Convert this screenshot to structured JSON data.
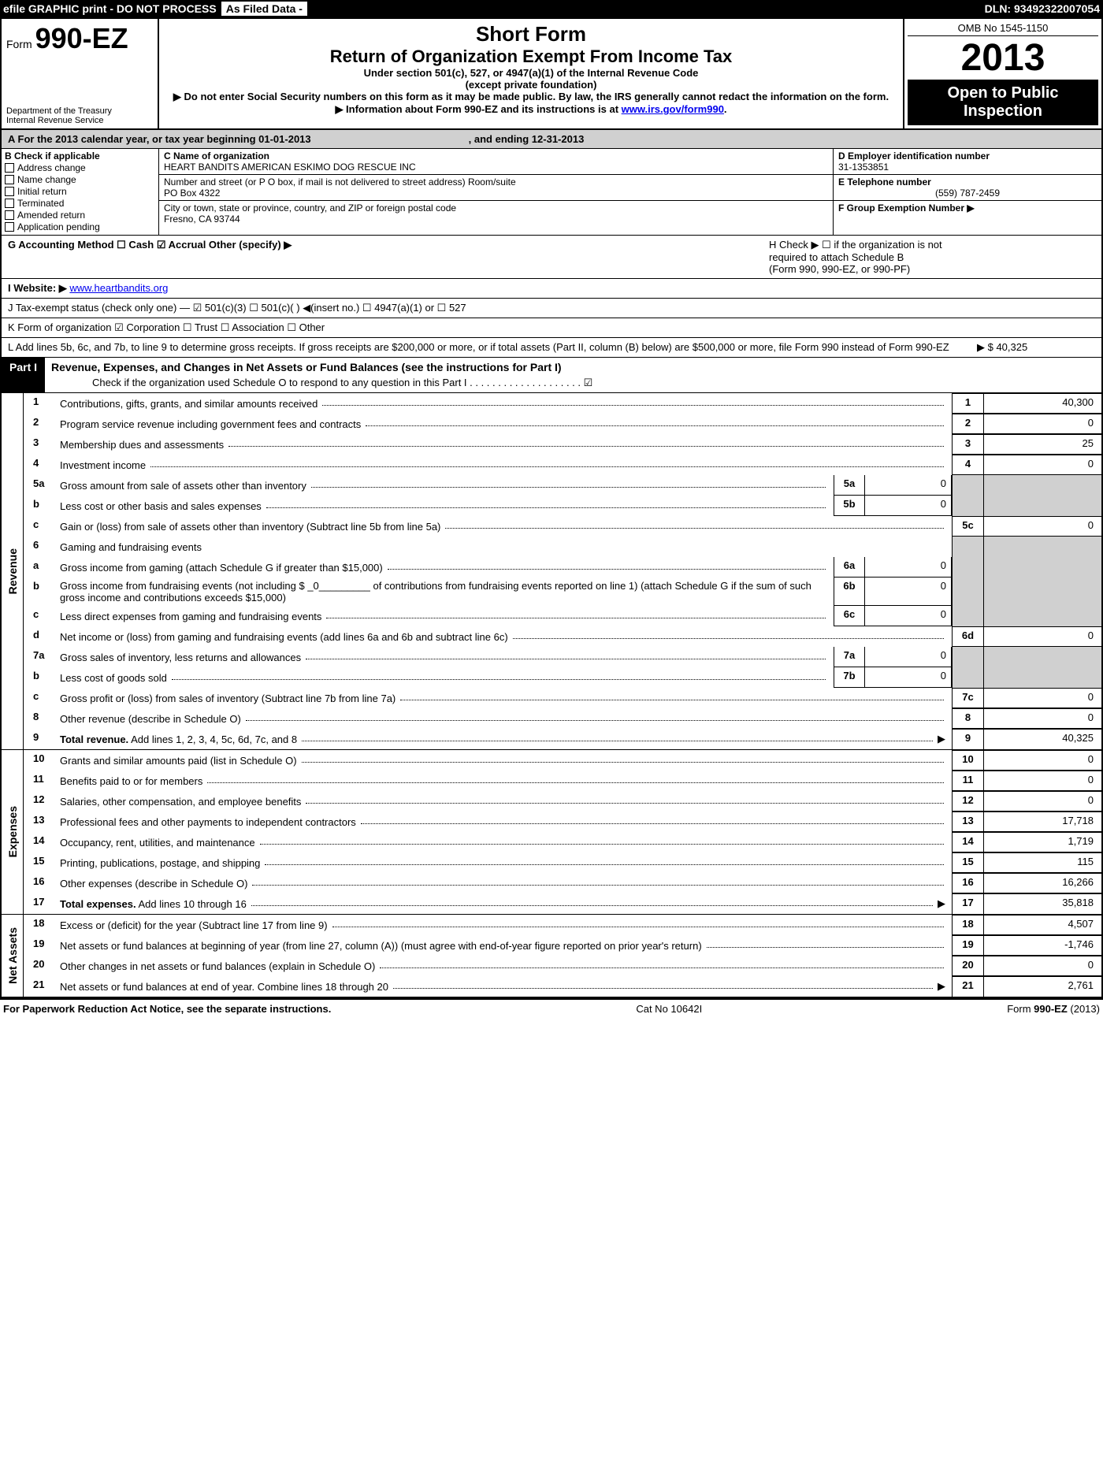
{
  "topbar": {
    "left": "efile GRAPHIC print - DO NOT PROCESS",
    "mid": "As Filed Data -",
    "right": "DLN: 93492322007054"
  },
  "header": {
    "form_prefix": "Form",
    "form_num": "990-EZ",
    "dept1": "Department of the Treasury",
    "dept2": "Internal Revenue Service",
    "short": "Short Form",
    "ret": "Return of Organization Exempt From Income Tax",
    "sub1": "Under section 501(c), 527, or 4947(a)(1) of the Internal Revenue Code",
    "sub2": "(except private foundation)",
    "note1": "▶ Do not enter Social Security numbers on this form as it may be made public. By law, the IRS generally cannot redact the information on the form.",
    "note2_a": "▶ Information about Form 990-EZ and its instructions is at ",
    "note2_link": "www.irs.gov/form990",
    "omb": "OMB No  1545-1150",
    "year": "2013",
    "open1": "Open to Public",
    "open2": "Inspection"
  },
  "rowA": {
    "a_text": "A  For the 2013 calendar year, or tax year beginning 01-01-2013",
    "a_end": ", and ending 12-31-2013"
  },
  "colB": {
    "title": "B  Check if applicable",
    "items": [
      "Address change",
      "Name change",
      "Initial return",
      "Terminated",
      "Amended return",
      "Application pending"
    ]
  },
  "colC": {
    "name_lbl": "C Name of organization",
    "name": "HEART BANDITS AMERICAN ESKIMO DOG RESCUE INC",
    "street_lbl": "Number and street (or P O box, if mail is not delivered to street address) Room/suite",
    "street": "PO Box 4322",
    "city_lbl": "City or town, state or province, country, and ZIP or foreign postal code",
    "city": "Fresno, CA  93744"
  },
  "colD": {
    "ein_lbl": "D Employer identification number",
    "ein": "31-1353851",
    "tel_lbl": "E Telephone number",
    "tel": "(559) 787-2459",
    "grp_lbl": "F Group Exemption Number  ▶"
  },
  "lineG": "G Accounting Method      ☐ Cash   ☑ Accrual   Other (specify) ▶",
  "lineH": {
    "h1": "H  Check ▶  ☐  if the organization is not",
    "h2": "required to attach Schedule B",
    "h3": "(Form 990, 990-EZ, or 990-PF)"
  },
  "lineI_lbl": "I Website: ▶",
  "lineI_link": "www.heartbandits.org",
  "lineJ": "J Tax-exempt status (check only one) — ☑ 501(c)(3)   ☐ 501(c)(  ) ◀(insert no.)  ☐ 4947(a)(1) or  ☐ 527",
  "lineK": "K Form of organization    ☑ Corporation   ☐ Trust   ☐ Association   ☐ Other",
  "lineL": "L Add lines 5b, 6c, and 7b, to line 9 to determine gross receipts. If gross receipts are $200,000 or more, or if total assets (Part II, column (B) below) are $500,000 or more, file Form 990 instead of Form 990-EZ",
  "lineL_val": "▶ $ 40,325",
  "part1": {
    "lbl": "Part I",
    "title": "Revenue, Expenses, and Changes in Net Assets or Fund Balances (see the instructions for Part I)",
    "sub": "Check if the organization used Schedule O to respond to any question in this Part I . . . . . . . . . . . . . . . . . . . . ☑"
  },
  "sections": {
    "revenue_label": "Revenue",
    "expenses_label": "Expenses",
    "net_label": "Net Assets"
  },
  "rows": [
    {
      "n": "1",
      "d": "Contributions, gifts, grants, and similar amounts received",
      "rn": "1",
      "rv": "40,300"
    },
    {
      "n": "2",
      "d": "Program service revenue including government fees and contracts",
      "rn": "2",
      "rv": "0"
    },
    {
      "n": "3",
      "d": "Membership dues and assessments",
      "rn": "3",
      "rv": "25"
    },
    {
      "n": "4",
      "d": "Investment income",
      "rn": "4",
      "rv": "0"
    },
    {
      "n": "5a",
      "d": "Gross amount from sale of assets other than inventory",
      "sn": "5a",
      "sv": "0",
      "grey": true
    },
    {
      "n": "b",
      "d": "Less  cost or other basis and sales expenses",
      "sn": "5b",
      "sv": "0",
      "grey": true
    },
    {
      "n": "c",
      "d": "Gain or (loss) from sale of assets other than inventory (Subtract line 5b from line 5a)",
      "rn": "5c",
      "rv": "0"
    },
    {
      "n": "6",
      "d": "Gaming and fundraising events",
      "grey": true,
      "noval": true
    },
    {
      "n": "a",
      "d": "Gross income from gaming (attach Schedule G if greater than $15,000)",
      "sn": "6a",
      "sv": "0",
      "grey": true
    },
    {
      "n": "b",
      "d": "Gross income from fundraising events (not including $ _0_________ of contributions from fundraising events reported on line 1) (attach Schedule G if the sum of such gross income and contributions exceeds $15,000)",
      "sn": "6b",
      "sv": "0",
      "grey": true
    },
    {
      "n": "c",
      "d": "Less  direct expenses from gaming and fundraising events",
      "sn": "6c",
      "sv": "0",
      "grey": true
    },
    {
      "n": "d",
      "d": "Net income or (loss) from gaming and fundraising events (add lines 6a and 6b and subtract line 6c)",
      "rn": "6d",
      "rv": "0"
    },
    {
      "n": "7a",
      "d": "Gross sales of inventory, less returns and allowances",
      "sn": "7a",
      "sv": "0",
      "grey": true
    },
    {
      "n": "b",
      "d": "Less  cost of goods sold",
      "sn": "7b",
      "sv": "0",
      "grey": true
    },
    {
      "n": "c",
      "d": "Gross profit or (loss) from sales of inventory (Subtract line 7b from line 7a)",
      "rn": "7c",
      "rv": "0"
    },
    {
      "n": "8",
      "d": "Other revenue (describe in Schedule O)",
      "rn": "8",
      "rv": "0"
    },
    {
      "n": "9",
      "d": "Total revenue. Add lines 1, 2, 3, 4, 5c, 6d, 7c, and 8",
      "rn": "9",
      "rv": "40,325",
      "bold": true,
      "arrow": true
    }
  ],
  "exp_rows": [
    {
      "n": "10",
      "d": "Grants and similar amounts paid (list in Schedule O)",
      "rn": "10",
      "rv": "0"
    },
    {
      "n": "11",
      "d": "Benefits paid to or for members",
      "rn": "11",
      "rv": "0"
    },
    {
      "n": "12",
      "d": "Salaries, other compensation, and employee benefits",
      "rn": "12",
      "rv": "0"
    },
    {
      "n": "13",
      "d": "Professional fees and other payments to independent contractors",
      "rn": "13",
      "rv": "17,718"
    },
    {
      "n": "14",
      "d": "Occupancy, rent, utilities, and maintenance",
      "rn": "14",
      "rv": "1,719"
    },
    {
      "n": "15",
      "d": "Printing, publications, postage, and shipping",
      "rn": "15",
      "rv": "115"
    },
    {
      "n": "16",
      "d": "Other expenses (describe in Schedule O)",
      "rn": "16",
      "rv": "16,266"
    },
    {
      "n": "17",
      "d": "Total expenses. Add lines 10 through 16",
      "rn": "17",
      "rv": "35,818",
      "bold": true,
      "arrow": true
    }
  ],
  "net_rows": [
    {
      "n": "18",
      "d": "Excess or (deficit) for the year (Subtract line 17 from line 9)",
      "rn": "18",
      "rv": "4,507"
    },
    {
      "n": "19",
      "d": "Net assets or fund balances at beginning of year (from line 27, column (A)) (must agree with end-of-year figure reported on prior year's return)",
      "rn": "19",
      "rv": "-1,746"
    },
    {
      "n": "20",
      "d": "Other changes in net assets or fund balances (explain in Schedule O)",
      "rn": "20",
      "rv": "0"
    },
    {
      "n": "21",
      "d": "Net assets or fund balances at end of year. Combine lines 18 through 20",
      "rn": "21",
      "rv": "2,761",
      "arrow": true
    }
  ],
  "footer": {
    "l": "For Paperwork Reduction Act Notice, see the separate instructions.",
    "m": "Cat No  10642I",
    "r": "Form 990-EZ (2013)"
  }
}
